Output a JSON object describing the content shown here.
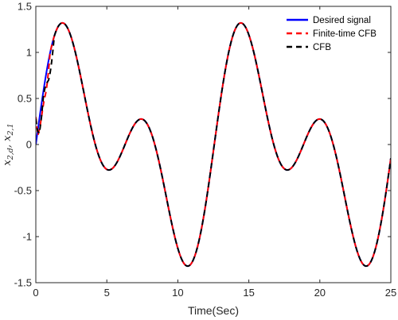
{
  "chart_data": {
    "type": "line",
    "xlabel": "Time(Sec)",
    "ylabel": {
      "base": "x",
      "sub1": "2,d",
      "sep": ", ",
      "sub2": "2,1"
    },
    "xlim": [
      0,
      25
    ],
    "ylim": [
      -1.5,
      1.5
    ],
    "xticks": [
      0,
      5,
      10,
      15,
      20,
      25
    ],
    "yticks": [
      -1.5,
      -1,
      -0.5,
      0,
      0.5,
      1,
      1.5
    ],
    "xtick_labels": [
      "0",
      "5",
      "10",
      "15",
      "20",
      "25"
    ],
    "ytick_labels": [
      "-1.5",
      "-1",
      "-0.5",
      "0",
      "0.5",
      "1",
      "1.5"
    ],
    "grid": false,
    "legend_position": "top-right",
    "signal_model": "0.75*sin(0.5t) + 0.75*sin(t)",
    "series": [
      {
        "name": "Desired signal",
        "color": "#0000ff",
        "style": "solid",
        "width": 2
      },
      {
        "name": "Finite-time CFB",
        "color": "#ff0000",
        "style": "dashed",
        "width": 2,
        "initial_transient": [
          [
            0,
            0.3
          ],
          [
            0.15,
            0.1
          ],
          [
            0.3,
            0.2
          ],
          [
            0.45,
            0.35
          ],
          [
            0.6,
            0.5
          ]
        ]
      },
      {
        "name": "CFB",
        "color": "#000000",
        "style": "dashed",
        "width": 2,
        "initial_transient": [
          [
            0,
            0.28
          ],
          [
            0.12,
            0.15
          ],
          [
            0.25,
            0.12
          ],
          [
            0.4,
            0.3
          ],
          [
            0.55,
            0.55
          ],
          [
            0.7,
            0.65
          ],
          [
            0.9,
            0.7
          ]
        ]
      }
    ],
    "turning_points": [
      {
        "x": 2.1,
        "y": 1.3
      },
      {
        "x": 6.3,
        "y": 0.0
      },
      {
        "x": 10.5,
        "y": -1.3
      },
      {
        "x": 14.6,
        "y": 1.3
      },
      {
        "x": 18.8,
        "y": 0.0
      },
      {
        "x": 23.0,
        "y": -1.3
      }
    ]
  }
}
